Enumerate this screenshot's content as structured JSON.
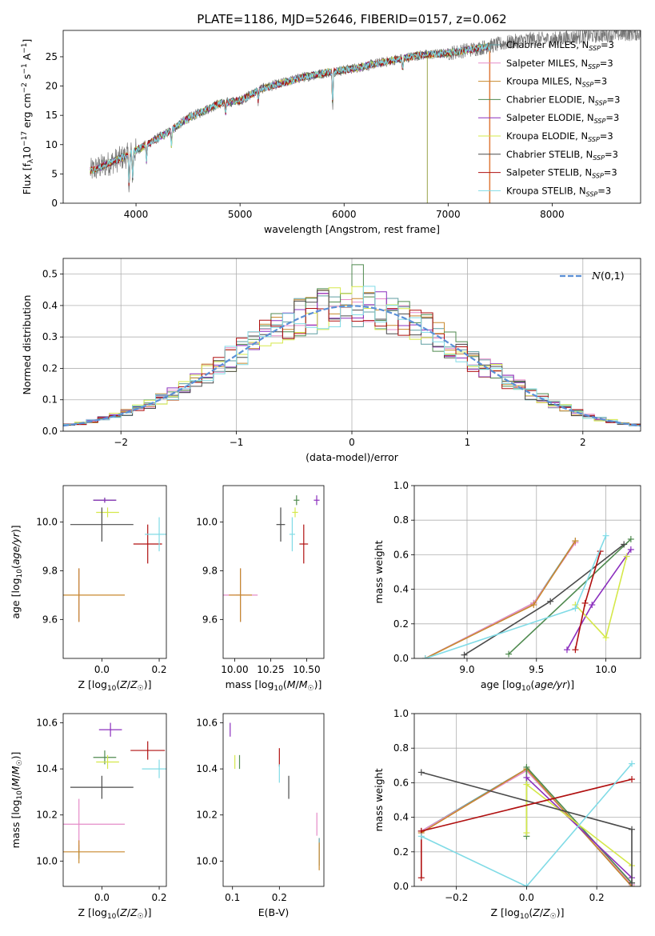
{
  "figure_title": "PLATE=1186, MJD=52646, FIBERID=0157, z=0.062",
  "legend_ssp": "=3",
  "legend_ssp_sub": "SSP",
  "legend_N": "N",
  "models": [
    {
      "name": "Chabrier MILES",
      "color": "#5f9ea0"
    },
    {
      "name": "Salpeter MILES",
      "color": "#e58bc8"
    },
    {
      "name": "Kroupa MILES",
      "color": "#c9892e"
    },
    {
      "name": "Chabrier ELODIE",
      "color": "#4f8a4f"
    },
    {
      "name": "Salpeter ELODIE",
      "color": "#8b2fbe"
    },
    {
      "name": "Kroupa ELODIE",
      "color": "#d5e84a"
    },
    {
      "name": "Chabrier STELIB",
      "color": "#4a4a4a"
    },
    {
      "name": "Salpeter STELIB",
      "color": "#b01010"
    },
    {
      "name": "Kroupa STELIB",
      "color": "#80dbe6"
    }
  ],
  "chart_data": [
    {
      "id": "spectrum",
      "type": "line",
      "xlabel": "wavelength [Angstrom, rest frame]",
      "ylabel": "Flux [f_λ10^-17 erg cm^-2 s^-1 A^-1]",
      "xlim": [
        3300,
        8850
      ],
      "ylim": [
        0,
        29.5
      ],
      "xticks": [
        4000,
        5000,
        6000,
        7000,
        8000
      ],
      "yticks": [
        0,
        5,
        10,
        15,
        20,
        25
      ],
      "grid": false,
      "legend": "right",
      "continuum": {
        "x": [
          3560,
          3700,
          3900,
          4100,
          4300,
          4500,
          4800,
          5000,
          5200,
          5400,
          5600,
          5900,
          6100,
          6300,
          6500,
          6700,
          7000,
          7300,
          7600,
          7800,
          8000,
          8300,
          8800
        ],
        "y": [
          5.5,
          6.5,
          8,
          10,
          12,
          14.5,
          17,
          17.5,
          19.5,
          20.5,
          21.5,
          22.5,
          23,
          23.8,
          24.5,
          25.2,
          25.6,
          26.5,
          27.5,
          28,
          28,
          28.5,
          29
        ]
      },
      "data_range": [
        3560,
        8850
      ],
      "model_range": [
        3560,
        7400
      ]
    },
    {
      "id": "residuals",
      "type": "step",
      "xlabel": "(data-model)/error",
      "ylabel": "Normed distribution",
      "xlim": [
        -2.5,
        2.5
      ],
      "ylim": [
        0,
        0.55
      ],
      "xticks": [
        -2,
        -1,
        0,
        1,
        2
      ],
      "yticks": [
        0.0,
        0.1,
        0.2,
        0.3,
        0.4,
        0.5
      ],
      "grid": true,
      "legend": "upper right",
      "gaussian_label": "N(0,1)"
    },
    {
      "id": "age_vs_Z",
      "type": "errorbar",
      "xlabel": "Z [log10(Z/Z☉)]",
      "ylabel": "age  [log10(age/yr)]",
      "xlim": [
        -0.135,
        0.225
      ],
      "ylim": [
        9.44,
        10.15
      ],
      "xticks": [
        0.0,
        0.2
      ],
      "yticks": [
        9.6,
        9.8,
        10.0
      ],
      "points": [
        {
          "m": 0,
          "x": -0.08,
          "y": 9.7,
          "xe": 0.0,
          "ye": 0.11
        },
        {
          "m": 1,
          "x": -0.08,
          "y": 9.7,
          "xe": 0.0,
          "ye": 0.11
        },
        {
          "m": 2,
          "x": -0.08,
          "y": 9.7,
          "xe": 0.16,
          "ye": 0.11
        },
        {
          "m": 3,
          "x": 0.01,
          "y": 10.09,
          "xe": 0.04,
          "ye": 0.01
        },
        {
          "m": 4,
          "x": 0.01,
          "y": 10.09,
          "xe": 0.04,
          "ye": 0.01
        },
        {
          "m": 5,
          "x": 0.02,
          "y": 10.04,
          "xe": 0.04,
          "ye": 0.02
        },
        {
          "m": 6,
          "x": 0.0,
          "y": 9.99,
          "xe": 0.11,
          "ye": 0.07
        },
        {
          "m": 7,
          "x": 0.16,
          "y": 9.91,
          "xe": 0.05,
          "ye": 0.08
        },
        {
          "m": 8,
          "x": 0.2,
          "y": 9.95,
          "xe": 0.05,
          "ye": 0.07
        }
      ]
    },
    {
      "id": "age_vs_mass",
      "type": "errorbar",
      "xlabel": "mass [log10(M/M☉)]",
      "ylabel": "",
      "xlim": [
        9.92,
        10.62
      ],
      "ylim": [
        9.44,
        10.15
      ],
      "xticks": [
        10.0,
        10.25,
        10.5
      ],
      "yticks": [
        9.6,
        9.8,
        10.0
      ],
      "points": [
        {
          "m": 0,
          "x": 10.04,
          "y": 9.7,
          "xe": 0.03,
          "ye": 0.11
        },
        {
          "m": 1,
          "x": 10.04,
          "y": 9.7,
          "xe": 0.12,
          "ye": 0.11
        },
        {
          "m": 2,
          "x": 10.04,
          "y": 9.7,
          "xe": 0.08,
          "ye": 0.11
        },
        {
          "m": 3,
          "x": 10.43,
          "y": 10.09,
          "xe": 0.02,
          "ye": 0.02
        },
        {
          "m": 4,
          "x": 10.57,
          "y": 10.09,
          "xe": 0.02,
          "ye": 0.02
        },
        {
          "m": 5,
          "x": 10.42,
          "y": 10.04,
          "xe": 0.02,
          "ye": 0.02
        },
        {
          "m": 6,
          "x": 10.32,
          "y": 9.99,
          "xe": 0.03,
          "ye": 0.07
        },
        {
          "m": 7,
          "x": 10.48,
          "y": 9.91,
          "xe": 0.03,
          "ye": 0.08
        },
        {
          "m": 8,
          "x": 10.4,
          "y": 9.95,
          "xe": 0.02,
          "ye": 0.07
        }
      ]
    },
    {
      "id": "weight_vs_age",
      "type": "line",
      "xlabel": "age  [log10(age/yr)]",
      "ylabel": "mass weight",
      "xlim": [
        8.62,
        10.25
      ],
      "ylim": [
        0,
        1.0
      ],
      "xticks": [
        9.0,
        9.5,
        10.0
      ],
      "yticks": [
        0.0,
        0.2,
        0.4,
        0.6,
        0.8,
        1.0
      ],
      "grid": true,
      "series": [
        {
          "m": 0,
          "x": [
            8.7,
            9.48,
            9.78
          ],
          "y": [
            0.0,
            0.32,
            0.68
          ]
        },
        {
          "m": 1,
          "x": [
            8.7,
            9.48,
            9.78
          ],
          "y": [
            0.0,
            0.32,
            0.67
          ]
        },
        {
          "m": 2,
          "x": [
            8.7,
            9.48,
            9.78
          ],
          "y": [
            0.0,
            0.31,
            0.68
          ]
        },
        {
          "m": 3,
          "x": [
            9.3,
            10.18
          ],
          "y": [
            0.025,
            0.69
          ]
        },
        {
          "m": 4,
          "x": [
            9.72,
            9.9,
            10.18
          ],
          "y": [
            0.05,
            0.31,
            0.63
          ]
        },
        {
          "m": 5,
          "x": [
            9.78,
            10.0,
            10.15
          ],
          "y": [
            0.31,
            0.12,
            0.59
          ]
        },
        {
          "m": 6,
          "x": [
            8.98,
            9.6,
            10.13
          ],
          "y": [
            0.02,
            0.33,
            0.66
          ]
        },
        {
          "m": 7,
          "x": [
            9.78,
            9.85,
            9.96
          ],
          "y": [
            0.05,
            0.32,
            0.62
          ]
        },
        {
          "m": 8,
          "x": [
            8.7,
            9.78,
            10.0
          ],
          "y": [
            0.0,
            0.29,
            0.71
          ]
        }
      ]
    },
    {
      "id": "mass_vs_Z",
      "type": "errorbar",
      "xlabel": "Z [log10(Z/Z☉)]",
      "ylabel": "mass [log10(M/M☉)]",
      "xlim": [
        -0.135,
        0.225
      ],
      "ylim": [
        9.89,
        10.64
      ],
      "xticks": [
        0.0,
        0.2
      ],
      "yticks": [
        10.0,
        10.2,
        10.4,
        10.6
      ],
      "points": [
        {
          "m": 0,
          "x": -0.08,
          "y": 10.04,
          "xe": 0.0,
          "ye": 0.03
        },
        {
          "m": 1,
          "x": -0.08,
          "y": 10.16,
          "xe": 0.16,
          "ye": 0.11
        },
        {
          "m": 2,
          "x": -0.08,
          "y": 10.04,
          "xe": 0.16,
          "ye": 0.05
        },
        {
          "m": 3,
          "x": 0.01,
          "y": 10.45,
          "xe": 0.04,
          "ye": 0.03
        },
        {
          "m": 4,
          "x": 0.03,
          "y": 10.57,
          "xe": 0.04,
          "ye": 0.03
        },
        {
          "m": 5,
          "x": 0.02,
          "y": 10.43,
          "xe": 0.04,
          "ye": 0.03
        },
        {
          "m": 6,
          "x": 0.0,
          "y": 10.32,
          "xe": 0.11,
          "ye": 0.05
        },
        {
          "m": 7,
          "x": 0.16,
          "y": 10.48,
          "xe": 0.06,
          "ye": 0.04
        },
        {
          "m": 8,
          "x": 0.2,
          "y": 10.4,
          "xe": 0.06,
          "ye": 0.04
        }
      ]
    },
    {
      "id": "mass_vs_ebv",
      "type": "errorbar",
      "xlabel": "E(B-V)",
      "ylabel": "",
      "xlim": [
        0.08,
        0.295
      ],
      "ylim": [
        9.89,
        10.64
      ],
      "xticks": [
        0.1,
        0.2
      ],
      "yticks": [
        10.0,
        10.2,
        10.4,
        10.6
      ],
      "points": [
        {
          "m": 0,
          "x": 0.285,
          "y": 10.04,
          "xe": 0.0,
          "ye": 0.06
        },
        {
          "m": 1,
          "x": 0.28,
          "y": 10.16,
          "xe": 0.0,
          "ye": 0.05
        },
        {
          "m": 2,
          "x": 0.285,
          "y": 10.02,
          "xe": 0.0,
          "ye": 0.06
        },
        {
          "m": 3,
          "x": 0.115,
          "y": 10.43,
          "xe": 0.0,
          "ye": 0.03
        },
        {
          "m": 4,
          "x": 0.095,
          "y": 10.57,
          "xe": 0.0,
          "ye": 0.03
        },
        {
          "m": 5,
          "x": 0.105,
          "y": 10.43,
          "xe": 0.0,
          "ye": 0.03
        },
        {
          "m": 6,
          "x": 0.22,
          "y": 10.32,
          "xe": 0.0,
          "ye": 0.05
        },
        {
          "m": 7,
          "x": 0.2,
          "y": 10.45,
          "xe": 0.0,
          "ye": 0.04
        },
        {
          "m": 8,
          "x": 0.2,
          "y": 10.38,
          "xe": 0.0,
          "ye": 0.04
        }
      ]
    },
    {
      "id": "weight_vs_Z",
      "type": "line",
      "xlabel": "Z [log10(Z/Z☉)]",
      "ylabel": "mass weight",
      "xlim": [
        -0.32,
        0.325
      ],
      "ylim": [
        0,
        1.0
      ],
      "xticks": [
        -0.2,
        0.0,
        0.2
      ],
      "yticks": [
        0.0,
        0.2,
        0.4,
        0.6,
        0.8,
        1.0
      ],
      "grid": true,
      "series": [
        {
          "m": 0,
          "x": [
            -0.3,
            0.0,
            0.3
          ],
          "y": [
            0.32,
            0.68,
            0.0
          ]
        },
        {
          "m": 1,
          "x": [
            -0.3,
            0.0,
            0.3
          ],
          "y": [
            0.32,
            0.67,
            0.01
          ]
        },
        {
          "m": 2,
          "x": [
            -0.3,
            0.0,
            0.3
          ],
          "y": [
            0.31,
            0.68,
            0.0
          ]
        },
        {
          "m": 3,
          "x": [
            0.0,
            0.0,
            0.3
          ],
          "y": [
            0.29,
            0.69,
            0.02
          ]
        },
        {
          "m": 4,
          "x": [
            0.0,
            0.3
          ],
          "y": [
            0.63,
            0.05
          ]
        },
        {
          "m": 5,
          "x": [
            0.0,
            0.0,
            0.3
          ],
          "y": [
            0.31,
            0.59,
            0.12
          ]
        },
        {
          "m": 6,
          "x": [
            -0.3,
            0.3,
            0.3
          ],
          "y": [
            0.66,
            0.33,
            0.02
          ]
        },
        {
          "m": 7,
          "x": [
            -0.3,
            -0.3,
            0.3
          ],
          "y": [
            0.05,
            0.32,
            0.62
          ]
        },
        {
          "m": 8,
          "x": [
            -0.3,
            0.0,
            0.3
          ],
          "y": [
            0.29,
            0.0,
            0.71
          ]
        }
      ]
    }
  ]
}
